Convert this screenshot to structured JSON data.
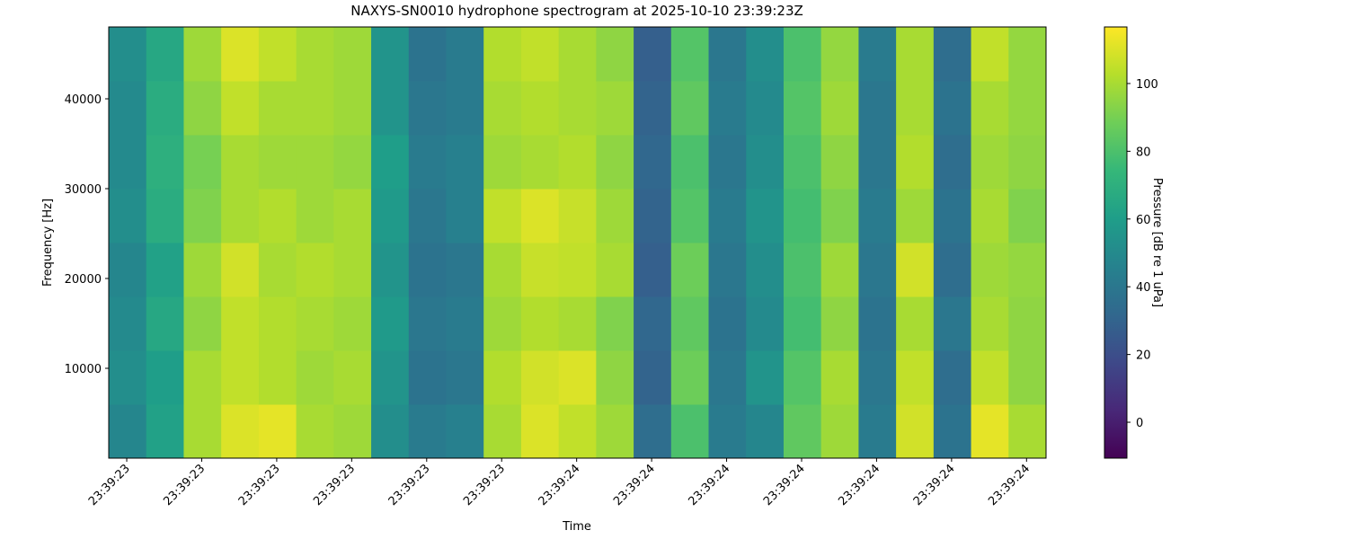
{
  "chart_data": {
    "type": "heatmap",
    "title": "NAXYS-SN0010 hydrophone spectrogram at 2025-10-10 23:39:23Z",
    "x_label": "Time",
    "y_label": "Frequency [Hz]",
    "colorbar_label": "Pressure [dB re 1 uPa]",
    "colormap": "viridis",
    "x": [
      23.401,
      23.451,
      23.501,
      23.551,
      23.601,
      23.651,
      23.701,
      23.751,
      23.801,
      23.851,
      23.901,
      23.951,
      24.001,
      24.051,
      24.101,
      24.151,
      24.201,
      24.251,
      24.301,
      24.351,
      24.401,
      24.451,
      24.501,
      24.551,
      24.601
    ],
    "y": [
      3000,
      9000,
      15000,
      21000,
      27000,
      33000,
      39000,
      45000
    ],
    "values": [
      [
        48,
        62,
        100,
        110,
        112,
        100,
        98,
        52,
        42,
        45,
        100,
        110,
        105,
        98,
        35,
        80,
        42,
        48,
        85,
        98,
        42,
        108,
        38,
        112,
        100
      ],
      [
        52,
        60,
        100,
        105,
        102,
        98,
        100,
        55,
        38,
        40,
        102,
        108,
        110,
        95,
        30,
        88,
        40,
        55,
        82,
        100,
        40,
        105,
        35,
        105,
        95
      ],
      [
        50,
        65,
        95,
        105,
        102,
        100,
        98,
        58,
        40,
        42,
        98,
        102,
        100,
        92,
        32,
        85,
        38,
        50,
        78,
        95,
        38,
        100,
        40,
        100,
        95
      ],
      [
        48,
        62,
        98,
        108,
        100,
        102,
        100,
        55,
        38,
        40,
        100,
        106,
        105,
        100,
        28,
        88,
        40,
        52,
        80,
        98,
        40,
        108,
        35,
        98,
        96
      ],
      [
        52,
        68,
        92,
        100,
        102,
        98,
        100,
        58,
        40,
        45,
        105,
        110,
        106,
        98,
        30,
        82,
        42,
        55,
        78,
        92,
        42,
        98,
        38,
        100,
        92
      ],
      [
        50,
        70,
        90,
        100,
        98,
        98,
        96,
        60,
        42,
        45,
        98,
        100,
        102,
        95,
        32,
        80,
        40,
        52,
        80,
        95,
        40,
        102,
        35,
        98,
        95
      ],
      [
        50,
        68,
        95,
        105,
        100,
        100,
        98,
        55,
        40,
        42,
        100,
        102,
        100,
        98,
        30,
        85,
        42,
        50,
        82,
        98,
        40,
        100,
        38,
        100,
        96
      ],
      [
        52,
        65,
        98,
        110,
        105,
        100,
        98,
        55,
        38,
        42,
        102,
        105,
        100,
        95,
        28,
        82,
        40,
        52,
        80,
        96,
        42,
        100,
        35,
        105,
        96
      ]
    ],
    "xlim": [
      23.376,
      24.626
    ],
    "xticks": [
      {
        "value": 23.4,
        "label": "23:39:23"
      },
      {
        "value": 23.5,
        "label": "23:39:23"
      },
      {
        "value": 23.6,
        "label": "23:39:23"
      },
      {
        "value": 23.7,
        "label": "23:39:23"
      },
      {
        "value": 23.8,
        "label": "23:39:23"
      },
      {
        "value": 23.9,
        "label": "23:39:23"
      },
      {
        "value": 24.0,
        "label": "23:39:24"
      },
      {
        "value": 24.1,
        "label": "23:39:24"
      },
      {
        "value": 24.2,
        "label": "23:39:24"
      },
      {
        "value": 24.3,
        "label": "23:39:24"
      },
      {
        "value": 24.4,
        "label": "23:39:24"
      },
      {
        "value": 24.5,
        "label": "23:39:24"
      },
      {
        "value": 24.6,
        "label": "23:39:24"
      }
    ],
    "ylim": [
      0,
      48000
    ],
    "yticks": [
      10000,
      20000,
      30000,
      40000
    ],
    "clim": [
      -10.6,
      116.7
    ],
    "cticks": [
      0,
      20,
      40,
      60,
      80,
      100
    ]
  }
}
